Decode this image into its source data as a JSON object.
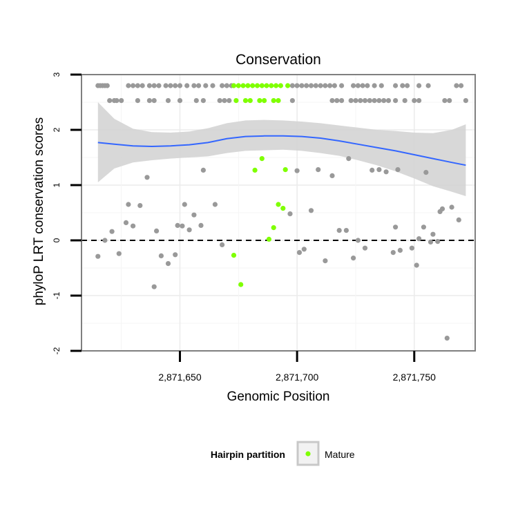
{
  "chart_data": {
    "type": "scatter",
    "title": "Conservation",
    "xlabel": "Genomic Position",
    "ylabel": "phyloP LRT conservation scores",
    "xlim": [
      2871608,
      2871776
    ],
    "ylim": [
      -2,
      3
    ],
    "x_ticks": [
      2871650,
      2871700,
      2871750
    ],
    "x_tick_labels": [
      "2,871,650",
      "2,871,700",
      "2,871,750"
    ],
    "y_ticks": [
      -2,
      -1,
      0,
      1,
      2,
      3
    ],
    "y_tick_labels": [
      "-2",
      "-1",
      "0",
      "1",
      "2",
      "3"
    ],
    "reference_line": {
      "y": 0,
      "style": "dashed"
    },
    "grid": true,
    "colors": {
      "other": "#999999",
      "mature": "#7fff00",
      "smooth_line": "#3366ff",
      "confidence_band": "#d4d4d4",
      "panel_border": "#7f7f7f"
    },
    "legend": {
      "title": "Hairpin partition",
      "entries": [
        "Mature"
      ],
      "position": "bottom"
    },
    "series": [
      {
        "name": "",
        "points": [
          [
            2871615,
            2.8
          ],
          [
            2871616,
            2.8
          ],
          [
            2871617,
            2.8
          ],
          [
            2871618,
            2.8
          ],
          [
            2871619,
            2.8
          ],
          [
            2871628,
            2.8
          ],
          [
            2871630,
            2.8
          ],
          [
            2871632,
            2.8
          ],
          [
            2871634,
            2.8
          ],
          [
            2871637,
            2.8
          ],
          [
            2871639,
            2.8
          ],
          [
            2871641,
            2.8
          ],
          [
            2871644,
            2.8
          ],
          [
            2871646,
            2.8
          ],
          [
            2871648,
            2.8
          ],
          [
            2871650,
            2.8
          ],
          [
            2871653,
            2.8
          ],
          [
            2871656,
            2.8
          ],
          [
            2871658,
            2.8
          ],
          [
            2871661,
            2.8
          ],
          [
            2871664,
            2.8
          ],
          [
            2871668,
            2.8
          ],
          [
            2871670,
            2.8
          ],
          [
            2871672,
            2.8
          ],
          [
            2871698,
            2.8
          ],
          [
            2871700,
            2.8
          ],
          [
            2871702,
            2.8
          ],
          [
            2871704,
            2.8
          ],
          [
            2871706,
            2.8
          ],
          [
            2871708,
            2.8
          ],
          [
            2871710,
            2.8
          ],
          [
            2871712,
            2.8
          ],
          [
            2871714,
            2.8
          ],
          [
            2871716,
            2.8
          ],
          [
            2871719,
            2.8
          ],
          [
            2871724,
            2.8
          ],
          [
            2871726,
            2.8
          ],
          [
            2871728,
            2.8
          ],
          [
            2871730,
            2.8
          ],
          [
            2871733,
            2.8
          ],
          [
            2871736,
            2.8
          ],
          [
            2871742,
            2.8
          ],
          [
            2871745,
            2.8
          ],
          [
            2871747,
            2.8
          ],
          [
            2871752,
            2.8
          ],
          [
            2871756,
            2.8
          ],
          [
            2871768,
            2.8
          ],
          [
            2871770,
            2.8
          ],
          [
            2871620,
            2.53
          ],
          [
            2871622,
            2.53
          ],
          [
            2871623,
            2.53
          ],
          [
            2871625,
            2.53
          ],
          [
            2871632,
            2.53
          ],
          [
            2871637,
            2.53
          ],
          [
            2871639,
            2.53
          ],
          [
            2871645,
            2.53
          ],
          [
            2871650,
            2.53
          ],
          [
            2871657,
            2.53
          ],
          [
            2871660,
            2.53
          ],
          [
            2871667,
            2.53
          ],
          [
            2871669,
            2.53
          ],
          [
            2871671,
            2.53
          ],
          [
            2871698,
            2.53
          ],
          [
            2871715,
            2.53
          ],
          [
            2871717,
            2.53
          ],
          [
            2871719,
            2.53
          ],
          [
            2871723,
            2.53
          ],
          [
            2871725,
            2.53
          ],
          [
            2871727,
            2.53
          ],
          [
            2871729,
            2.53
          ],
          [
            2871731,
            2.53
          ],
          [
            2871733,
            2.53
          ],
          [
            2871735,
            2.53
          ],
          [
            2871737,
            2.53
          ],
          [
            2871739,
            2.53
          ],
          [
            2871742,
            2.53
          ],
          [
            2871746,
            2.53
          ],
          [
            2871750,
            2.53
          ],
          [
            2871752,
            2.53
          ],
          [
            2871763,
            2.53
          ],
          [
            2871765,
            2.53
          ],
          [
            2871772,
            2.53
          ],
          [
            2871615,
            -0.29
          ],
          [
            2871618,
            0.0
          ],
          [
            2871621,
            0.16
          ],
          [
            2871624,
            -0.24
          ],
          [
            2871627,
            0.32
          ],
          [
            2871628,
            0.65
          ],
          [
            2871630,
            0.26
          ],
          [
            2871633,
            0.63
          ],
          [
            2871636,
            1.14
          ],
          [
            2871639,
            -0.84
          ],
          [
            2871640,
            0.17
          ],
          [
            2871642,
            -0.28
          ],
          [
            2871645,
            -0.42
          ],
          [
            2871648,
            -0.26
          ],
          [
            2871649,
            0.27
          ],
          [
            2871651,
            0.26
          ],
          [
            2871652,
            0.65
          ],
          [
            2871654,
            0.19
          ],
          [
            2871656,
            0.46
          ],
          [
            2871659,
            0.27
          ],
          [
            2871660,
            1.27
          ],
          [
            2871665,
            0.65
          ],
          [
            2871668,
            -0.08
          ],
          [
            2871697,
            0.48
          ],
          [
            2871700,
            1.26
          ],
          [
            2871701,
            -0.22
          ],
          [
            2871703,
            -0.16
          ],
          [
            2871706,
            0.54
          ],
          [
            2871709,
            1.28
          ],
          [
            2871712,
            -0.37
          ],
          [
            2871715,
            1.17
          ],
          [
            2871718,
            0.18
          ],
          [
            2871721,
            0.18
          ],
          [
            2871722,
            1.48
          ],
          [
            2871724,
            -0.32
          ],
          [
            2871726,
            0.0
          ],
          [
            2871729,
            -0.14
          ],
          [
            2871732,
            1.27
          ],
          [
            2871735,
            1.28
          ],
          [
            2871738,
            1.24
          ],
          [
            2871741,
            -0.22
          ],
          [
            2871742,
            0.24
          ],
          [
            2871743,
            1.28
          ],
          [
            2871744,
            -0.18
          ],
          [
            2871749,
            -0.14
          ],
          [
            2871751,
            -0.45
          ],
          [
            2871752,
            0.03
          ],
          [
            2871754,
            0.24
          ],
          [
            2871755,
            1.23
          ],
          [
            2871757,
            -0.03
          ],
          [
            2871758,
            0.11
          ],
          [
            2871760,
            -0.02
          ],
          [
            2871761,
            0.52
          ],
          [
            2871762,
            0.57
          ],
          [
            2871764,
            -1.77
          ],
          [
            2871766,
            0.6
          ],
          [
            2871769,
            0.37
          ]
        ]
      },
      {
        "name": "Mature",
        "points": [
          [
            2871673,
            2.8
          ],
          [
            2871675,
            2.8
          ],
          [
            2871677,
            2.8
          ],
          [
            2871679,
            2.8
          ],
          [
            2871681,
            2.8
          ],
          [
            2871683,
            2.8
          ],
          [
            2871685,
            2.8
          ],
          [
            2871687,
            2.8
          ],
          [
            2871689,
            2.8
          ],
          [
            2871691,
            2.8
          ],
          [
            2871693,
            2.8
          ],
          [
            2871696,
            2.8
          ],
          [
            2871674,
            2.53
          ],
          [
            2871678,
            2.53
          ],
          [
            2871680,
            2.53
          ],
          [
            2871684,
            2.53
          ],
          [
            2871686,
            2.53
          ],
          [
            2871690,
            2.53
          ],
          [
            2871692,
            2.53
          ],
          [
            2871673,
            -0.27
          ],
          [
            2871676,
            -0.8
          ],
          [
            2871682,
            1.27
          ],
          [
            2871685,
            1.48
          ],
          [
            2871688,
            0.02
          ],
          [
            2871690,
            0.23
          ],
          [
            2871692,
            0.65
          ],
          [
            2871694,
            0.58
          ],
          [
            2871695,
            1.28
          ]
        ]
      }
    ],
    "smooth": {
      "x": [
        2871615,
        2871622,
        2871630,
        2871638,
        2871646,
        2871654,
        2871662,
        2871670,
        2871678,
        2871686,
        2871694,
        2871702,
        2871710,
        2871718,
        2871726,
        2871734,
        2871742,
        2871750,
        2871758,
        2871766,
        2871772
      ],
      "y": [
        1.77,
        1.74,
        1.71,
        1.7,
        1.71,
        1.73,
        1.77,
        1.84,
        1.88,
        1.89,
        1.89,
        1.88,
        1.85,
        1.8,
        1.74,
        1.68,
        1.62,
        1.55,
        1.48,
        1.41,
        1.36
      ],
      "lower": [
        1.05,
        1.3,
        1.41,
        1.45,
        1.48,
        1.5,
        1.52,
        1.58,
        1.62,
        1.63,
        1.64,
        1.62,
        1.58,
        1.53,
        1.45,
        1.36,
        1.25,
        1.12,
        0.98,
        0.88,
        0.8
      ],
      "upper": [
        2.5,
        2.2,
        2.02,
        1.96,
        1.95,
        1.97,
        2.03,
        2.12,
        2.17,
        2.18,
        2.17,
        2.15,
        2.12,
        2.08,
        2.04,
        2.0,
        1.98,
        1.95,
        1.94,
        2.0,
        2.1
      ]
    }
  }
}
